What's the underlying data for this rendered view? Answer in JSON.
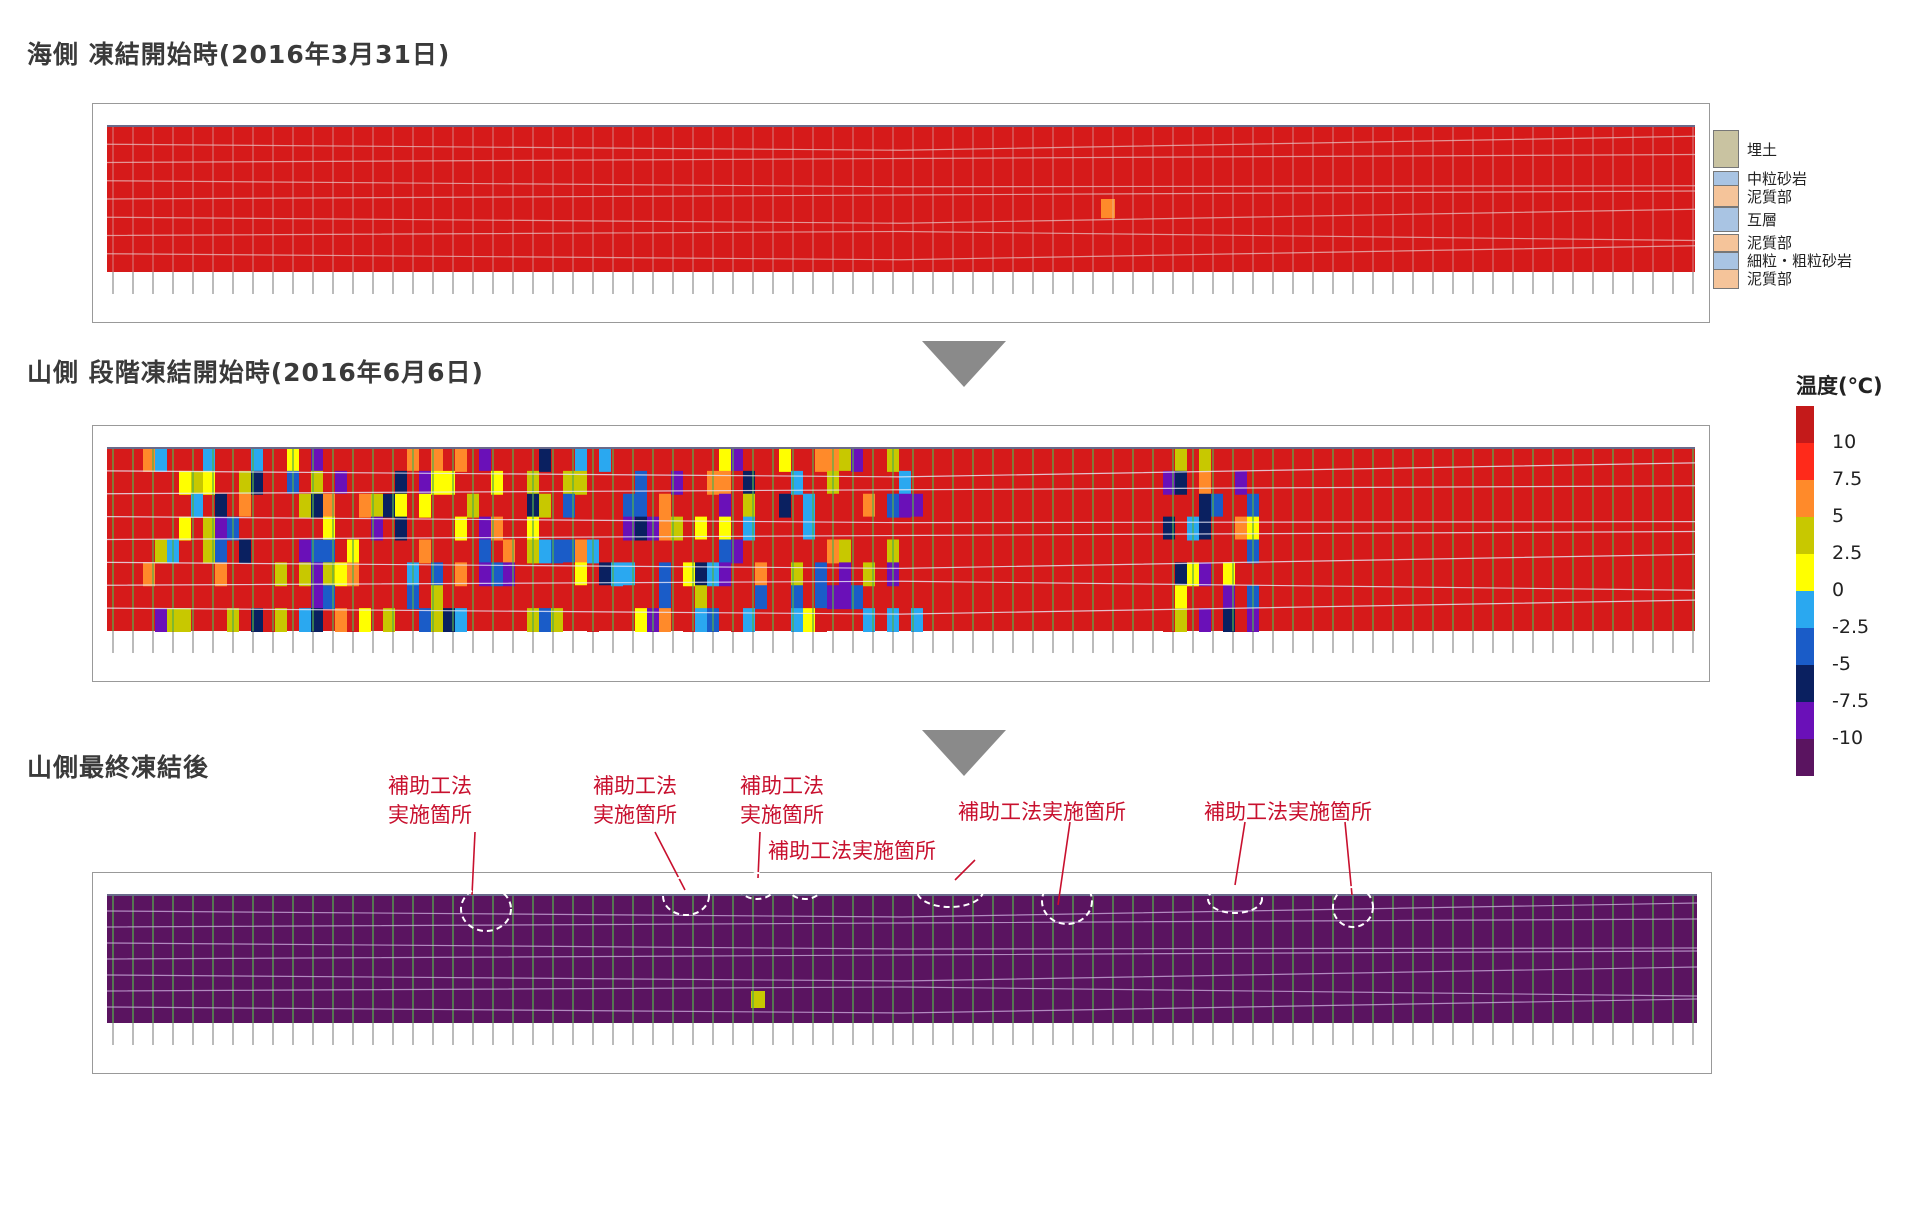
{
  "sections": {
    "s1_title": "海側 凍結開始時(2016年3月31日)",
    "s2_title": "山側 段階凍結開始時(2016年6月6日)",
    "s3_title": "山側最終凍結後"
  },
  "geology_legend": [
    {
      "label": "埋土",
      "color": "#c9c3a1"
    },
    {
      "label": "中粒砂岩",
      "color": "#a9c4e3"
    },
    {
      "label": "泥質部",
      "color": "#f5c49a"
    },
    {
      "label": "互層",
      "color": "#a9c4e3"
    },
    {
      "label": "泥質部",
      "color": "#f5c49a"
    },
    {
      "label": "細粒・粗粒砂岩",
      "color": "#a9c4e3"
    },
    {
      "label": "泥質部",
      "color": "#f5c49a"
    }
  ],
  "temperature_legend": {
    "title": "温度(℃)",
    "colors": [
      "#c41a1a",
      "#ff2a1a",
      "#ff8a2a",
      "#c8c800",
      "#ffff00",
      "#2aa8f0",
      "#1a5cc8",
      "#0a2060",
      "#6a10b8",
      "#5a1460"
    ],
    "ticks": [
      "10",
      "7.5",
      "5",
      "2.5",
      "0",
      "-2.5",
      "-5",
      "-7.5",
      "-10"
    ]
  },
  "callouts": [
    {
      "text_line1": "補助工法",
      "text_line2": "実施箇所"
    },
    {
      "text_line1": "補助工法",
      "text_line2": "実施箇所"
    },
    {
      "text_line1": "補助工法",
      "text_line2": "実施箇所"
    },
    {
      "text_line1": "補助工法実施箇所"
    },
    {
      "text_line1": "補助工法実施箇所"
    },
    {
      "text_line1": "補助工法実施箇所"
    }
  ]
}
